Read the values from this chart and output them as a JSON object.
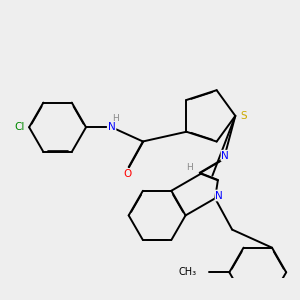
{
  "bg_color": "#eeeeee",
  "atom_colors": {
    "N": "#0000ff",
    "O": "#ff0000",
    "S": "#ccaa00",
    "Cl": "#008800",
    "H": "#888888",
    "C": "#000000"
  },
  "lw": 1.4,
  "lw_double": 1.2,
  "double_sep": 0.018,
  "font_size": 7.5
}
